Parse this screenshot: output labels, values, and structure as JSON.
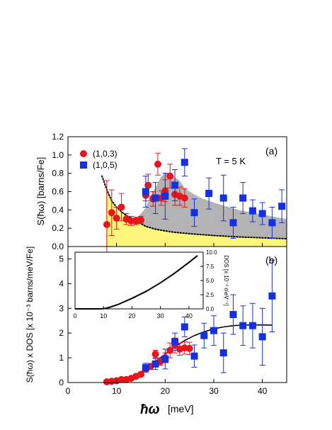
{
  "chart_data": [
    {
      "panel": "(a)",
      "type": "scatter",
      "annotation": "T = 5 K",
      "ylabel": "S(ħω) [barns/Fe]",
      "xlim": [
        0,
        45
      ],
      "ylim": [
        0,
        1.2
      ],
      "yticks": [
        "0.0",
        "0.2",
        "0.4",
        "0.6",
        "0.8",
        "1.0",
        "1.2"
      ],
      "legend_position": "top-left",
      "colors": {
        "red": "#e8151b",
        "blue": "#1530e0",
        "gray": "#b3b3b3",
        "yellow": "#fcf67a"
      },
      "series": [
        {
          "name": "(1,0,3)",
          "marker": "circle",
          "color": "#e8151b",
          "points": [
            {
              "x": 8.0,
              "y": 0.24,
              "err": 0.48
            },
            {
              "x": 9.0,
              "y": 0.37,
              "err": 0.25
            },
            {
              "x": 10.0,
              "y": 0.31,
              "err": 0.12
            },
            {
              "x": 11.0,
              "y": 0.43,
              "err": 0.15
            },
            {
              "x": 12.0,
              "y": 0.3,
              "err": 0.06
            },
            {
              "x": 13.0,
              "y": 0.28,
              "err": 0.05
            },
            {
              "x": 14.0,
              "y": 0.28,
              "err": 0.04
            },
            {
              "x": 15.0,
              "y": 0.29,
              "err": 0.04
            },
            {
              "x": 16.0,
              "y": 0.56,
              "err": 0.06
            },
            {
              "x": 16.5,
              "y": 0.67,
              "err": 0.12
            },
            {
              "x": 17.5,
              "y": 0.52,
              "err": 0.08
            },
            {
              "x": 18.5,
              "y": 0.9,
              "err": 0.12
            },
            {
              "x": 19.2,
              "y": 0.53,
              "err": 0.08
            },
            {
              "x": 20.0,
              "y": 0.61,
              "err": 0.12
            },
            {
              "x": 21.0,
              "y": 0.77,
              "err": 0.13
            },
            {
              "x": 22.0,
              "y": 0.57,
              "err": 0.12
            },
            {
              "x": 23.0,
              "y": 0.55,
              "err": 0.1
            },
            {
              "x": 24.0,
              "y": 0.53,
              "err": 0.1
            }
          ]
        },
        {
          "name": "(1,0,5)",
          "marker": "square",
          "color": "#1530e0",
          "points": [
            {
              "x": 16.0,
              "y": 0.6,
              "err": 0.17
            },
            {
              "x": 18.0,
              "y": 0.53,
              "err": 0.17
            },
            {
              "x": 20.0,
              "y": 0.55,
              "err": 0.25
            },
            {
              "x": 22.0,
              "y": 0.67,
              "err": 0.17
            },
            {
              "x": 24.0,
              "y": 0.92,
              "err": 0.15
            },
            {
              "x": 26.0,
              "y": 0.37,
              "err": 0.15
            },
            {
              "x": 29.0,
              "y": 0.58,
              "err": 0.17
            },
            {
              "x": 32.0,
              "y": 0.53,
              "err": 0.25
            },
            {
              "x": 34.0,
              "y": 0.26,
              "err": 0.17
            },
            {
              "x": 36.0,
              "y": 0.53,
              "err": 0.17
            },
            {
              "x": 38.0,
              "y": 0.39,
              "err": 0.12
            },
            {
              "x": 40.0,
              "y": 0.36,
              "err": 0.12
            },
            {
              "x": 42.0,
              "y": 0.26,
              "err": 0.17
            },
            {
              "x": 44.0,
              "y": 0.44,
              "err": 0.18
            }
          ]
        }
      ],
      "dotted_curve": {
        "x": [
          7.0,
          8.0,
          9.0,
          10.0,
          11.0,
          12.0,
          13.0,
          14.0,
          15.0,
          16.0,
          18.0,
          20.0,
          22.0,
          25.0,
          30.0,
          35.0,
          40.0,
          45.0
        ],
        "y": [
          0.77,
          0.62,
          0.5,
          0.43,
          0.38,
          0.34,
          0.31,
          0.28,
          0.25,
          0.22,
          0.19,
          0.17,
          0.155,
          0.14,
          0.12,
          0.105,
          0.095,
          0.085
        ]
      },
      "yellow_fill": {
        "x": [
          8.0,
          8.0,
          9.0,
          10.0,
          12.0,
          14.0,
          16.0,
          18.0,
          20.0,
          22.0,
          25.0,
          30.0,
          35.0,
          40.0,
          45.0
        ],
        "y": [
          0.0,
          0.6,
          0.5,
          0.43,
          0.34,
          0.28,
          0.22,
          0.19,
          0.17,
          0.155,
          0.14,
          0.12,
          0.105,
          0.095,
          0.085
        ]
      },
      "gray_fill_top": {
        "x": [
          14.0,
          16.0,
          17.0,
          18.0,
          19.0,
          20.0,
          21.0,
          22.0,
          23.0,
          24.0,
          25.0,
          27.0,
          30.0,
          35.0,
          40.0,
          45.0
        ],
        "y": [
          0.3,
          0.42,
          0.56,
          0.64,
          0.75,
          0.81,
          0.8,
          0.76,
          0.72,
          0.64,
          0.6,
          0.54,
          0.48,
          0.4,
          0.35,
          0.3
        ]
      }
    },
    {
      "panel": "(b)",
      "type": "scatter",
      "xlabel": "ħω",
      "xlabel_unit": "[meV]",
      "ylabel": "S(ħω) x DOS [x 10⁻³ barns/meV/Fe]",
      "xlim": [
        0,
        45
      ],
      "ylim": [
        0,
        5.5
      ],
      "xticks": [
        "0",
        "10",
        "20",
        "30",
        "40"
      ],
      "yticks": [
        "0",
        "1",
        "2",
        "3",
        "4",
        "5"
      ],
      "series": [
        {
          "name": "(1,0,3)",
          "marker": "circle",
          "color": "#e8151b",
          "points": [
            {
              "x": 8.0,
              "y": 0.03,
              "err": 0.05
            },
            {
              "x": 9.0,
              "y": 0.05,
              "err": 0.05
            },
            {
              "x": 10.0,
              "y": 0.07,
              "err": 0.06
            },
            {
              "x": 11.0,
              "y": 0.12,
              "err": 0.06
            },
            {
              "x": 12.0,
              "y": 0.12,
              "err": 0.06
            },
            {
              "x": 13.0,
              "y": 0.17,
              "err": 0.06
            },
            {
              "x": 14.0,
              "y": 0.25,
              "err": 0.08
            },
            {
              "x": 15.0,
              "y": 0.33,
              "err": 0.08
            },
            {
              "x": 16.0,
              "y": 0.55,
              "err": 0.1
            },
            {
              "x": 17.0,
              "y": 0.65,
              "err": 0.12
            },
            {
              "x": 18.0,
              "y": 1.15,
              "err": 0.15
            },
            {
              "x": 19.0,
              "y": 0.85,
              "err": 0.15
            },
            {
              "x": 20.0,
              "y": 1.0,
              "err": 0.2
            },
            {
              "x": 21.0,
              "y": 1.3,
              "err": 0.3
            },
            {
              "x": 22.0,
              "y": 1.5,
              "err": 0.3
            },
            {
              "x": 23.0,
              "y": 1.35,
              "err": 0.25
            },
            {
              "x": 24.0,
              "y": 1.4,
              "err": 0.25
            },
            {
              "x": 25.0,
              "y": 1.38,
              "err": 0.25
            }
          ]
        },
        {
          "name": "(1,0,5)",
          "marker": "square",
          "color": "#1530e0",
          "points": [
            {
              "x": 16.0,
              "y": 0.6,
              "err": 0.18
            },
            {
              "x": 18.0,
              "y": 0.75,
              "err": 0.22
            },
            {
              "x": 20.0,
              "y": 0.95,
              "err": 0.4
            },
            {
              "x": 22.0,
              "y": 1.65,
              "err": 0.35
            },
            {
              "x": 24.0,
              "y": 2.25,
              "err": 0.4
            },
            {
              "x": 26.0,
              "y": 1.07,
              "err": 0.45
            },
            {
              "x": 28.0,
              "y": 1.9,
              "err": 0.5
            },
            {
              "x": 30.0,
              "y": 2.1,
              "err": 0.6
            },
            {
              "x": 32.0,
              "y": 1.2,
              "err": 0.8
            },
            {
              "x": 34.0,
              "y": 2.75,
              "err": 0.8
            },
            {
              "x": 36.0,
              "y": 2.3,
              "err": 0.8
            },
            {
              "x": 38.0,
              "y": 2.3,
              "err": 0.9
            },
            {
              "x": 40.0,
              "y": 1.85,
              "err": 1.15
            },
            {
              "x": 42.0,
              "y": 3.5,
              "err": 1.45
            }
          ]
        }
      ],
      "fit_curve": {
        "x": [
          8.0,
          10.0,
          12.0,
          14.0,
          16.0,
          18.0,
          20.0,
          22.0,
          24.0,
          26.0,
          28.0,
          30.0,
          32.0,
          34.0,
          36.0,
          38.0,
          40.0,
          42.0
        ],
        "y": [
          0.0,
          0.05,
          0.15,
          0.3,
          0.55,
          0.85,
          1.15,
          1.45,
          1.7,
          1.9,
          2.05,
          2.17,
          2.25,
          2.3,
          2.32,
          2.33,
          2.33,
          2.32
        ]
      },
      "inset": {
        "type": "line",
        "ylabel": "DOS [x 10⁻³ meV⁻¹]",
        "xlim": [
          0,
          45
        ],
        "ylim": [
          0,
          10
        ],
        "xticks": [
          "0",
          "10",
          "20",
          "30",
          "40"
        ],
        "yticks": [
          "0.0",
          "2.5",
          "5.0",
          "7.5",
          "10.0"
        ],
        "x": [
          0,
          5,
          8,
          10,
          12,
          15,
          20,
          25,
          30,
          35,
          40,
          43
        ],
        "y": [
          0,
          0,
          0,
          0.03,
          0.25,
          0.75,
          1.85,
          3.1,
          4.6,
          6.3,
          8.2,
          9.4
        ]
      }
    }
  ],
  "legend": [
    {
      "label": "(1,0,3)",
      "marker": "circle",
      "color": "#e8151b"
    },
    {
      "label": "(1,0,5)",
      "marker": "square",
      "color": "#1530e0"
    }
  ]
}
